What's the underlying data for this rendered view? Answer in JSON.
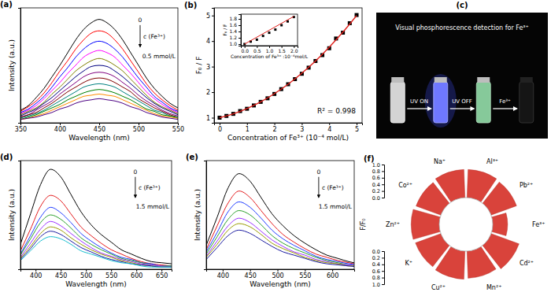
{
  "chart_data": [
    {
      "type": "line",
      "label": "(a)",
      "x": [
        350,
        360,
        370,
        380,
        390,
        400,
        410,
        420,
        430,
        440,
        450,
        460,
        470,
        480,
        490,
        500,
        510,
        520,
        530,
        540,
        550
      ],
      "xlim": [
        350,
        550
      ],
      "xticks": [
        350,
        400,
        450,
        500,
        550
      ],
      "ylim": [
        0,
        100
      ],
      "tick_labels": "x",
      "x_label": "Wavelength (nm)",
      "y_label": "Intensity (a.u.)",
      "annotations": [
        "0",
        "c (Fe³⁺)",
        "0.5 mmol/L"
      ],
      "series": [
        {
          "color": "#000000",
          "values": [
            11,
            15,
            22,
            30,
            40,
            50,
            61,
            72,
            81,
            87,
            90,
            87,
            81,
            72,
            61,
            50,
            39,
            30,
            23,
            17,
            13
          ]
        },
        {
          "color": "#ff0000",
          "values": [
            10,
            14,
            19,
            26,
            35,
            45,
            54,
            64,
            72,
            78,
            80,
            78,
            72,
            64,
            54,
            44,
            34,
            26,
            20,
            15,
            11
          ]
        },
        {
          "color": "#0000ff",
          "values": [
            9,
            12,
            17,
            23,
            31,
            40,
            48,
            57,
            64,
            69,
            71,
            69,
            64,
            57,
            48,
            39,
            31,
            23,
            18,
            13,
            10
          ]
        },
        {
          "color": "#ff00ff",
          "values": [
            8,
            11,
            15,
            21,
            28,
            35,
            43,
            50,
            57,
            61,
            63,
            61,
            57,
            50,
            43,
            35,
            27,
            21,
            16,
            12,
            9
          ]
        },
        {
          "color": "#808000",
          "values": [
            7,
            10,
            13,
            18,
            25,
            31,
            38,
            45,
            50,
            54,
            56,
            54,
            50,
            45,
            38,
            31,
            24,
            18,
            14,
            11,
            8
          ]
        },
        {
          "color": "#000080",
          "values": [
            6,
            9,
            12,
            17,
            22,
            28,
            34,
            40,
            45,
            49,
            50,
            49,
            45,
            40,
            34,
            28,
            22,
            17,
            13,
            10,
            7
          ]
        },
        {
          "color": "#800080",
          "values": [
            5,
            7,
            11,
            15,
            19,
            25,
            30,
            35,
            40,
            43,
            44,
            43,
            40,
            35,
            30,
            24,
            19,
            15,
            11,
            8,
            6
          ]
        },
        {
          "color": "#800000",
          "values": [
            5,
            7,
            9,
            13,
            17,
            22,
            27,
            31,
            35,
            38,
            39,
            38,
            35,
            31,
            27,
            21,
            17,
            13,
            10,
            7,
            5
          ]
        },
        {
          "color": "#008080",
          "values": [
            4,
            6,
            8,
            11,
            15,
            19,
            23,
            27,
            31,
            33,
            34,
            33,
            31,
            27,
            23,
            19,
            15,
            11,
            9,
            6,
            5
          ]
        },
        {
          "color": "#008000",
          "values": [
            3,
            5,
            7,
            10,
            13,
            16,
            20,
            23,
            26,
            28,
            29,
            28,
            26,
            23,
            20,
            16,
            12,
            10,
            7,
            6,
            4
          ]
        },
        {
          "color": "#ff8c00",
          "values": [
            3,
            4,
            6,
            8,
            11,
            14,
            17,
            20,
            23,
            24,
            25,
            24,
            23,
            20,
            17,
            14,
            11,
            8,
            6,
            5,
            4
          ]
        },
        {
          "color": "#4b0082",
          "values": [
            3,
            4,
            5,
            7,
            9,
            12,
            14,
            17,
            19,
            20,
            21,
            20,
            19,
            17,
            14,
            12,
            9,
            7,
            5,
            4,
            3
          ]
        }
      ]
    },
    {
      "type": "scatter",
      "label": "(b)",
      "xlim": [
        -0.2,
        5.2
      ],
      "xticks": [
        0,
        1,
        2,
        3,
        4,
        5
      ],
      "ylim": [
        0.8,
        5.3
      ],
      "yticks": [
        1,
        2,
        3,
        4,
        5
      ],
      "x_label": "Concentration of Fe³⁺ (10⁻⁴ mol/L)",
      "y_label": "F₀ / F",
      "annotations": [
        "R² = 0.998"
      ],
      "series": [
        {
          "type": "scatter",
          "marker": "square",
          "color": "#000000",
          "x": [
            0,
            0.25,
            0.5,
            0.75,
            1,
            1.25,
            1.5,
            1.75,
            2,
            2.25,
            2.5,
            2.75,
            3,
            3.25,
            3.5,
            3.75,
            4,
            4.25,
            4.5,
            4.75,
            5
          ],
          "values": [
            1.0,
            1.07,
            1.15,
            1.26,
            1.35,
            1.48,
            1.62,
            1.76,
            1.93,
            2.12,
            2.31,
            2.51,
            2.72,
            2.96,
            3.22,
            3.45,
            3.72,
            4.1,
            4.33,
            4.7,
            5.02
          ]
        },
        {
          "type": "line",
          "color": "#e0201b",
          "x": [
            0,
            0.5,
            1,
            1.5,
            2,
            2.5,
            3,
            3.5,
            4,
            4.5,
            5
          ],
          "values": [
            1.0,
            1.15,
            1.36,
            1.62,
            1.94,
            2.31,
            2.74,
            3.22,
            3.76,
            4.35,
            5.0
          ]
        }
      ],
      "inset": {
        "type": "scatter",
        "xlim": [
          -0.15,
          2.15
        ],
        "xticks": [
          {
            "value": 0,
            "label": "0.0"
          },
          0.5,
          {
            "value": 1,
            "label": "1.0"
          },
          1.5,
          {
            "value": 2,
            "label": "2.0"
          }
        ],
        "ylim": [
          0.95,
          1.95
        ],
        "yticks": [
          {
            "value": 1,
            "label": "1.0"
          },
          1.2,
          1.4,
          1.6,
          1.8
        ],
        "x_label": "Concentration of Fe³⁺ :10⁻⁴mol/L",
        "y_label": "F₀ / F",
        "series": [
          {
            "type": "scatter",
            "marker": "square",
            "color": "#000000",
            "x": [
              0,
              0.25,
              0.5,
              0.75,
              1,
              1.25,
              1.5,
              1.75,
              2
            ],
            "values": [
              1.0,
              1.08,
              1.14,
              1.26,
              1.36,
              1.46,
              1.6,
              1.72,
              1.86
            ]
          },
          {
            "type": "line",
            "color": "#e0201b",
            "x": [
              0,
              2
            ],
            "values": [
              1.0,
              1.88
            ]
          }
        ]
      }
    },
    {
      "type": "photo",
      "label": "(c)",
      "title": "Visual phosphorescence detection for Fe³⁺",
      "annotations": [
        "UV ON",
        "UV OFF",
        "Fe³⁺"
      ]
    },
    {
      "type": "line",
      "label": "(d)",
      "x": [
        370,
        390,
        410,
        430,
        450,
        470,
        490,
        510,
        530,
        550,
        570,
        590,
        610,
        630,
        650,
        670
      ],
      "xlim": [
        370,
        670
      ],
      "xticks": [
        400,
        450,
        500,
        550,
        600,
        650
      ],
      "ylim": [
        0,
        100
      ],
      "tick_labels": "x",
      "x_label": "Wavelength (nm)",
      "y_label": "Intensity (a.u.)",
      "annotations": [
        "0",
        "c (Fe³⁺)",
        "1.5 mmol/L"
      ],
      "series": [
        {
          "color": "#000000",
          "values": [
            23,
            51,
            78,
            92,
            85,
            69,
            53,
            41,
            32,
            25,
            18,
            14,
            10,
            7,
            6,
            5
          ]
        },
        {
          "color": "#e41a1c",
          "values": [
            17,
            37,
            58,
            68,
            63,
            51,
            39,
            31,
            24,
            18,
            14,
            10,
            7,
            5,
            4,
            3
          ]
        },
        {
          "color": "#1f3bff",
          "values": [
            14,
            31,
            48,
            57,
            52,
            43,
            33,
            26,
            20,
            15,
            11,
            9,
            6,
            5,
            3,
            3
          ]
        },
        {
          "color": "#2ca02c",
          "values": [
            13,
            28,
            43,
            50,
            46,
            38,
            29,
            23,
            18,
            14,
            10,
            8,
            6,
            4,
            3,
            3
          ]
        },
        {
          "color": "#9b30ff",
          "values": [
            11,
            24,
            37,
            44,
            40,
            33,
            26,
            20,
            15,
            12,
            9,
            7,
            5,
            4,
            3,
            2
          ]
        },
        {
          "color": "#9a9a00",
          "values": [
            10,
            21,
            33,
            39,
            36,
            29,
            23,
            18,
            14,
            11,
            8,
            6,
            4,
            3,
            2,
            2
          ]
        },
        {
          "color": "#1a1aa0",
          "values": [
            9,
            19,
            30,
            35,
            32,
            26,
            20,
            16,
            12,
            9,
            7,
            5,
            4,
            3,
            2,
            2
          ]
        },
        {
          "color": "#17becf",
          "values": [
            8,
            17,
            26,
            30,
            28,
            23,
            17,
            14,
            11,
            8,
            6,
            5,
            3,
            2,
            2,
            2
          ]
        }
      ]
    },
    {
      "type": "line",
      "label": "(e)",
      "x": [
        370,
        390,
        410,
        430,
        450,
        470,
        490,
        510,
        530,
        550,
        570,
        590,
        610,
        630,
        650
      ],
      "xlim": [
        370,
        640
      ],
      "xticks": [
        400,
        450,
        500,
        550,
        600
      ],
      "ylim": [
        0,
        100
      ],
      "tick_labels": "x",
      "x_label": "Wavelength (nm)",
      "y_label": "Intensity (a.u.)",
      "annotations": [
        "0",
        "c (Fe³⁺)",
        "1.5 mmol/L"
      ],
      "series": [
        {
          "color": "#000000",
          "values": [
            22,
            48,
            75,
            88,
            81,
            66,
            51,
            40,
            31,
            24,
            18,
            13,
            10,
            7,
            5
          ]
        },
        {
          "color": "#e41a1c",
          "values": [
            18,
            40,
            61,
            72,
            66,
            54,
            42,
            32,
            25,
            19,
            14,
            11,
            8,
            6,
            4
          ]
        },
        {
          "color": "#1f3bff",
          "values": [
            16,
            34,
            53,
            62,
            57,
            47,
            36,
            28,
            22,
            17,
            12,
            9,
            7,
            5,
            4
          ]
        },
        {
          "color": "#2ca02c",
          "values": [
            14,
            30,
            46,
            54,
            50,
            41,
            31,
            24,
            19,
            15,
            11,
            8,
            6,
            4,
            3
          ]
        },
        {
          "color": "#9b30ff",
          "values": [
            12,
            26,
            40,
            47,
            43,
            35,
            27,
            21,
            16,
            13,
            9,
            7,
            5,
            4,
            3
          ]
        },
        {
          "color": "#9a9a00",
          "values": [
            11,
            23,
            36,
            42,
            39,
            32,
            24,
            19,
            15,
            11,
            8,
            6,
            5,
            3,
            3
          ]
        },
        {
          "color": "#1a1aa0",
          "values": [
            9,
            20,
            31,
            36,
            33,
            27,
            21,
            16,
            13,
            10,
            7,
            5,
            4,
            3,
            2
          ]
        }
      ]
    },
    {
      "type": "radial_bar",
      "label": "(f)",
      "categories": [
        "Al³⁺",
        "Pb²⁺",
        "Fe³⁺",
        "Cd²⁺",
        "Mn²⁺",
        "Cu²⁺",
        "K⁺",
        "Zn²⁺",
        "Co²⁺",
        "Na⁺"
      ],
      "values": [
        0.85,
        0.82,
        0.45,
        0.9,
        0.82,
        0.85,
        0.82,
        0.85,
        0.8,
        0.85
      ],
      "color": "#d9433b",
      "ylim": [
        0,
        1
      ],
      "yticks": [
        {
          "value": 0,
          "label": "0.0"
        },
        0.2,
        0.4,
        0.6,
        0.8,
        {
          "value": 1,
          "label": "1.0"
        }
      ],
      "y_label": "F/F₀"
    }
  ]
}
